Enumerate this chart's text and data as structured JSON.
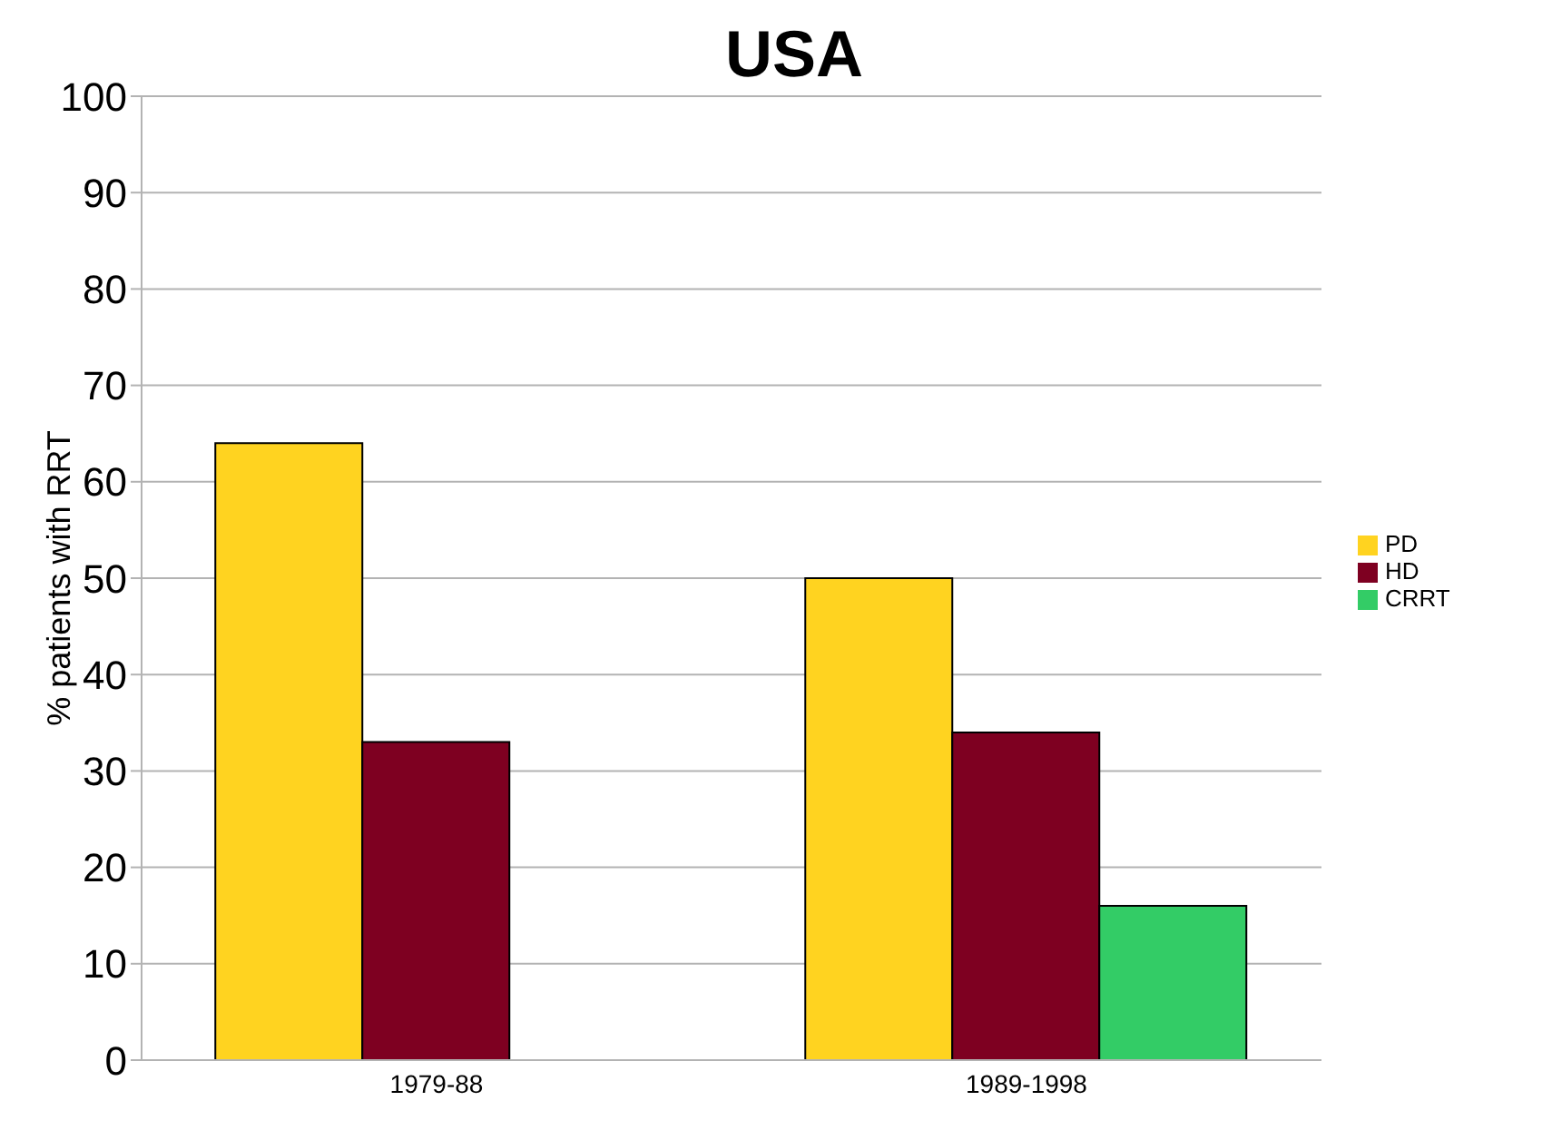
{
  "chart_data": {
    "type": "bar",
    "title": "USA",
    "ylabel": "% patients with RRT",
    "categories": [
      "1979-88",
      "1989-1998"
    ],
    "series": [
      {
        "name": "PD",
        "color": "#ffd320",
        "values": [
          64,
          50
        ]
      },
      {
        "name": "HD",
        "color": "#7e0021",
        "values": [
          33,
          34
        ]
      },
      {
        "name": "CRRT",
        "color": "#33cc66",
        "values": [
          null,
          16
        ]
      }
    ],
    "ylim": [
      0,
      100
    ],
    "yticks": [
      0,
      10,
      20,
      30,
      40,
      50,
      60,
      70,
      80,
      90,
      100
    ],
    "grid": "y",
    "legend": "right"
  }
}
